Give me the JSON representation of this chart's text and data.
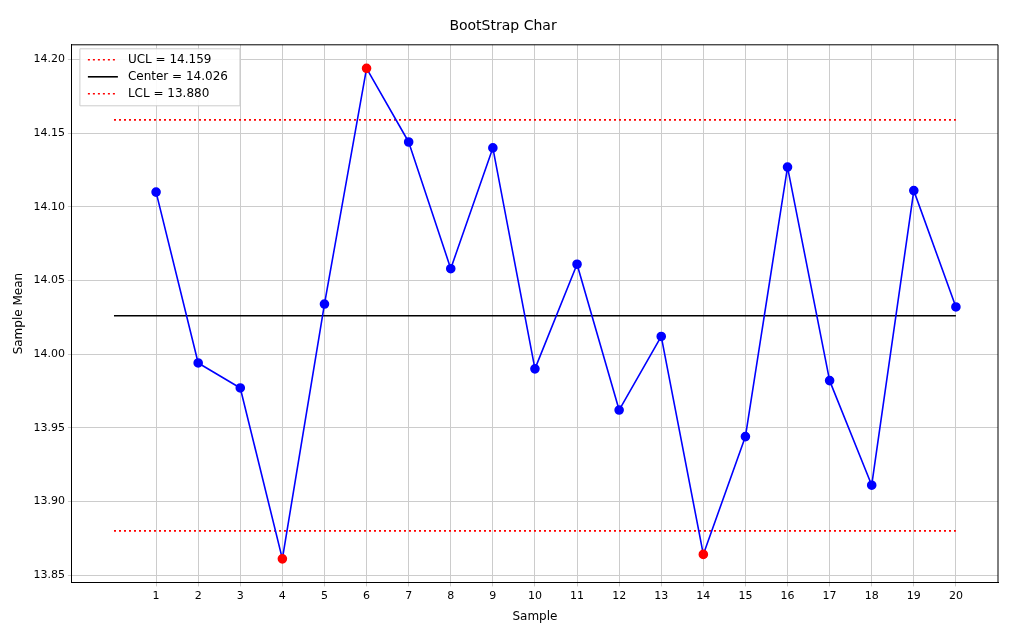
{
  "chart_data": {
    "type": "line",
    "title": "BootStrap Char",
    "xlabel": "Sample",
    "ylabel": "Sample Mean",
    "xlim": [
      -1,
      21
    ],
    "xticks": [
      1,
      2,
      3,
      4,
      5,
      6,
      7,
      8,
      9,
      10,
      11,
      12,
      13,
      14,
      15,
      16,
      17,
      18,
      19,
      20
    ],
    "ylim": [
      13.845,
      14.21
    ],
    "yticks": [
      {
        "value": 13.85,
        "label": "13.85"
      },
      {
        "value": 13.9,
        "label": "13.90"
      },
      {
        "value": 13.95,
        "label": "13.95"
      },
      {
        "value": 14,
        "label": "14.00"
      },
      {
        "value": 14.05,
        "label": "14.05"
      },
      {
        "value": 14.1,
        "label": "14.10"
      },
      {
        "value": 14.15,
        "label": "14.15"
      },
      {
        "value": 14.2,
        "label": "14.20"
      }
    ],
    "grid": true,
    "legend": "top left",
    "series": [
      {
        "color": "#0000ff",
        "marker": "circle",
        "line_style": "solid",
        "x": [
          1,
          2,
          3,
          4,
          5,
          6,
          7,
          8,
          9,
          10,
          11,
          12,
          13,
          14,
          15,
          16,
          17,
          18,
          19,
          20
        ],
        "values": [
          14.11,
          13.994,
          13.977,
          13.861,
          14.034,
          14.194,
          14.144,
          14.058,
          14.14,
          13.99,
          14.061,
          13.962,
          14.012,
          13.864,
          13.944,
          14.127,
          13.982,
          13.911,
          14.111,
          14.032
        ],
        "colors": [
          "#0000ff",
          "#0000ff",
          "#0000ff",
          "#ff0000",
          "#0000ff",
          "#ff0000",
          "#0000ff",
          "#0000ff",
          "#0000ff",
          "#0000ff",
          "#0000ff",
          "#0000ff",
          "#0000ff",
          "#ff0000",
          "#0000ff",
          "#0000ff",
          "#0000ff",
          "#0000ff",
          "#0000ff",
          "#0000ff"
        ]
      },
      {
        "name": "UCL = 14.159",
        "color": "#ff0000",
        "marker": "none",
        "line_style": "dotted",
        "x": [
          0,
          20
        ],
        "values": [
          14.159,
          14.159
        ]
      },
      {
        "name": "Center = 14.026",
        "color": "#000000",
        "marker": "none",
        "line_style": "solid",
        "x": [
          0,
          20
        ],
        "values": [
          14.026,
          14.026
        ]
      },
      {
        "name": "LCL = 13.880",
        "color": "#ff0000",
        "marker": "none",
        "line_style": "dotted",
        "x": [
          0,
          20
        ],
        "values": [
          13.88,
          13.88
        ]
      }
    ]
  }
}
